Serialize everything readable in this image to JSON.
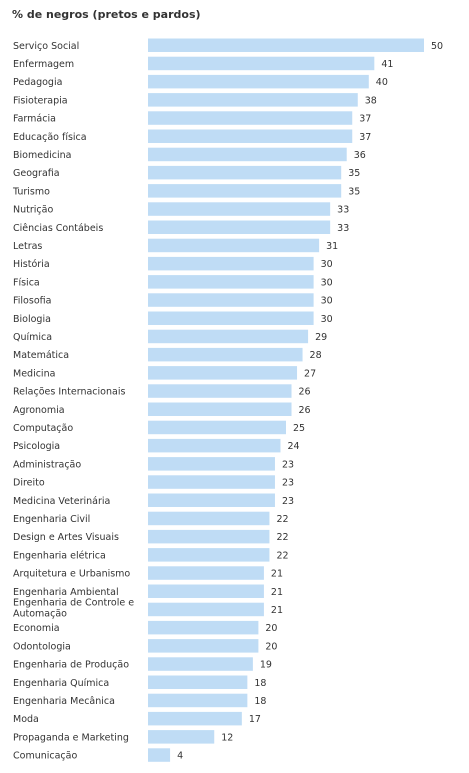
{
  "chart_data": {
    "type": "bar",
    "orientation": "horizontal",
    "title": "% de negros (pretos e pardos)",
    "bar_color": "#bfdcf5",
    "categories": [
      "Serviço Social",
      "Enfermagem",
      "Pedagogia",
      "Fisioterapia",
      "Farmácia",
      "Educação física",
      "Biomedicina",
      "Geografia",
      "Turismo",
      "Nutrição",
      "Ciências Contábeis",
      "Letras",
      "História",
      "Física",
      "Filosofia",
      "Biologia",
      "Química",
      "Matemática",
      "Medicina",
      "Relações Internacionais",
      "Agronomia",
      "Computação",
      "Psicologia",
      "Administração",
      "Direito",
      "Medicina Veterinária",
      "Engenharia Civil",
      "Design e Artes Visuais",
      "Engenharia elétrica",
      "Arquitetura e Urbanismo",
      "Engenharia Ambiental",
      "Engenharia de Controle e Automação",
      "Economia",
      "Odontologia",
      "Engenharia de Produção",
      "Engenharia Química",
      "Engenharia Mecânica",
      "Moda",
      "Propaganda e Marketing",
      "Comunicação"
    ],
    "values": [
      50,
      41,
      40,
      38,
      37,
      37,
      36,
      35,
      35,
      33,
      33,
      31,
      30,
      30,
      30,
      30,
      29,
      28,
      27,
      26,
      26,
      25,
      24,
      23,
      23,
      23,
      22,
      22,
      22,
      21,
      21,
      21,
      20,
      20,
      19,
      18,
      18,
      17,
      12,
      4
    ],
    "xlim": [
      0,
      50
    ]
  }
}
